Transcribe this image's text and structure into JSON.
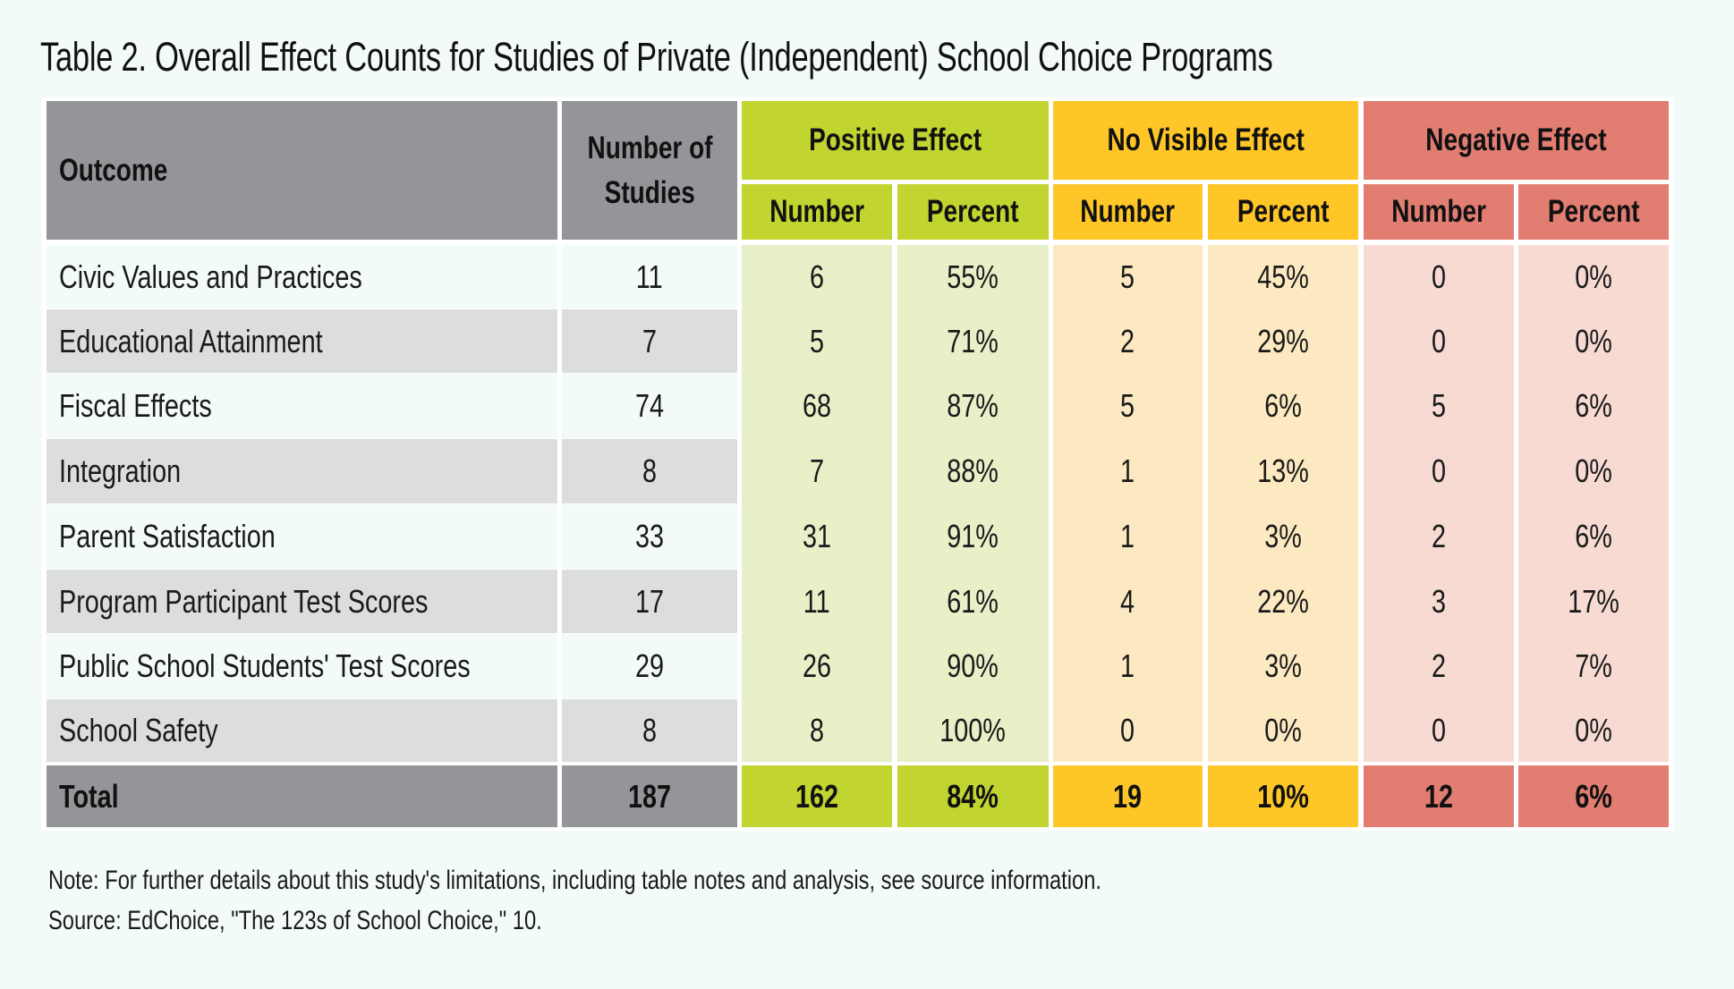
{
  "title": "Table 2. Overall Effect Counts for Studies of Private (Independent) School Choice Programs",
  "colors": {
    "header_gray": "#939598",
    "positive": "#c2d42f",
    "positive_light": "#e8f0c8",
    "no_effect": "#fec626",
    "no_effect_light": "#fde9c1",
    "negative": "#e27d72",
    "negative_light": "#f7dbd3",
    "row_alt": "#dcdddf",
    "background": "#f2fbfa"
  },
  "table": {
    "headers": {
      "outcome": "Outcome",
      "studies": "Number of Studies",
      "studies_line1": "Number of",
      "studies_line2": "Studies",
      "groups": [
        {
          "label": "Positive Effect",
          "number": "Number",
          "percent": "Percent"
        },
        {
          "label": "No Visible Effect",
          "number": "Number",
          "percent": "Percent"
        },
        {
          "label": "Negative Effect",
          "number": "Number",
          "percent": "Percent"
        }
      ]
    },
    "rows": [
      {
        "outcome": "Civic Values and Practices",
        "studies": "11",
        "pos_n": "6",
        "pos_p": "55%",
        "none_n": "5",
        "none_p": "45%",
        "neg_n": "0",
        "neg_p": "0%"
      },
      {
        "outcome": "Educational Attainment",
        "studies": "7",
        "pos_n": "5",
        "pos_p": "71%",
        "none_n": "2",
        "none_p": "29%",
        "neg_n": "0",
        "neg_p": "0%"
      },
      {
        "outcome": "Fiscal Effects",
        "studies": "74",
        "pos_n": "68",
        "pos_p": "87%",
        "none_n": "5",
        "none_p": "6%",
        "neg_n": "5",
        "neg_p": "6%"
      },
      {
        "outcome": "Integration",
        "studies": "8",
        "pos_n": "7",
        "pos_p": "88%",
        "none_n": "1",
        "none_p": "13%",
        "neg_n": "0",
        "neg_p": "0%"
      },
      {
        "outcome": "Parent Satisfaction",
        "studies": "33",
        "pos_n": "31",
        "pos_p": "91%",
        "none_n": "1",
        "none_p": "3%",
        "neg_n": "2",
        "neg_p": "6%"
      },
      {
        "outcome": "Program Participant Test Scores",
        "studies": "17",
        "pos_n": "11",
        "pos_p": "61%",
        "none_n": "4",
        "none_p": "22%",
        "neg_n": "3",
        "neg_p": "17%"
      },
      {
        "outcome": "Public School Students' Test Scores",
        "studies": "29",
        "pos_n": "26",
        "pos_p": "90%",
        "none_n": "1",
        "none_p": "3%",
        "neg_n": "2",
        "neg_p": "7%"
      },
      {
        "outcome": "School Safety",
        "studies": "8",
        "pos_n": "8",
        "pos_p": "100%",
        "none_n": "0",
        "none_p": "0%",
        "neg_n": "0",
        "neg_p": "0%"
      }
    ],
    "total": {
      "outcome": "Total",
      "studies": "187",
      "pos_n": "162",
      "pos_p": "84%",
      "none_n": "19",
      "none_p": "10%",
      "neg_n": "12",
      "neg_p": "6%"
    }
  },
  "notes": {
    "note": "Note: For further details about this study's limitations, including table notes and analysis, see source information.",
    "source": "Source: EdChoice, \"The 123s of School Choice,\" 10."
  }
}
